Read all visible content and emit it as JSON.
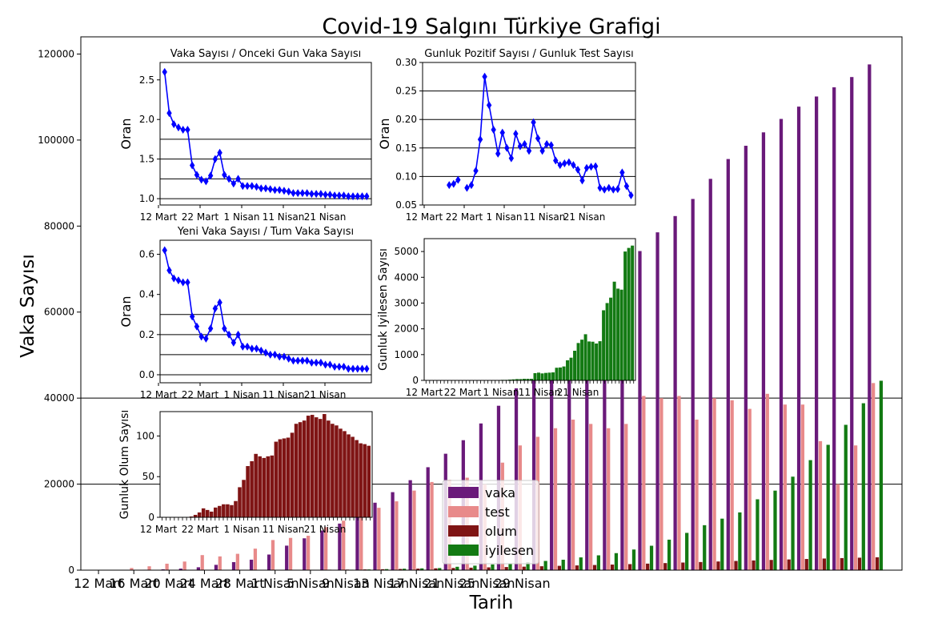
{
  "title": "Covid-19 Salgını Türkiye Grafigi",
  "colors": {
    "vaka": "#6a1a7a",
    "test": "#e88a8a",
    "olum": "#7f1414",
    "iyilesen": "#137a13",
    "ratio_line": "#0000ff",
    "recovered_inset": "#137a13",
    "deaths_inset": "#7f1414"
  },
  "chart_data": [
    {
      "type": "bar",
      "name": "main",
      "xlabel": "Tarih",
      "ylabel": "Vaka Sayısı",
      "ylim": [
        0,
        124000
      ],
      "y_ticks": [
        0,
        20000,
        40000,
        60000,
        80000,
        100000,
        120000
      ],
      "x_tick_labels": [
        "12 Mart",
        "16 Mart",
        "20 Mart",
        "24 Mart",
        "28 Mart",
        "1 Nisan",
        "5 Nisan",
        "9 Nisan",
        "13 Nisan",
        "17 Nisan",
        "21 Nisan",
        "25 Nisan",
        "29 Nisan"
      ],
      "horizontal_lines": [
        20000,
        40000
      ],
      "legend": {
        "placement": "lower-center",
        "entries": [
          "vaka",
          "test",
          "olum",
          "iyilesen"
        ]
      },
      "bar_group_every": 2,
      "series": [
        {
          "name": "vaka",
          "values": [
            1,
            5,
            47,
            98,
            192,
            359,
            670,
            1236,
            1872,
            2433,
            3629,
            5698,
            7402,
            9217,
            10827,
            13531,
            15679,
            18135,
            20921,
            23934,
            27069,
            30217,
            34109,
            38226,
            42282,
            47029,
            52167,
            56956,
            61049,
            65111,
            69392,
            74193,
            78546,
            82329,
            86306,
            90980,
            95591,
            98674,
            101790,
            104912,
            107773,
            110130,
            112261,
            114653,
            117589
          ]
        },
        {
          "name": "test",
          "values": [
            0,
            0,
            500,
            900,
            1500,
            2000,
            3500,
            3200,
            3800,
            5000,
            7000,
            7500,
            8000,
            10000,
            11500,
            15000,
            14500,
            16000,
            18500,
            20500,
            21000,
            21500,
            20000,
            25000,
            29000,
            31000,
            33000,
            35000,
            34000,
            33000,
            34000,
            40500,
            40000,
            40500,
            35000,
            40000,
            39500,
            37500,
            41000,
            38500,
            38500,
            30000,
            20000,
            29000,
            43500
          ]
        },
        {
          "name": "olum",
          "values": [
            0,
            0,
            1,
            2,
            3,
            4,
            9,
            30,
            37,
            44,
            59,
            75,
            92,
            108,
            131,
            168,
            214,
            277,
            356,
            425,
            501,
            574,
            649,
            725,
            812,
            908,
            1006,
            1101,
            1198,
            1296,
            1403,
            1518,
            1643,
            1769,
            1890,
            2017,
            2140,
            2259,
            2376,
            2491,
            2600,
            2706,
            2805,
            2900,
            2992
          ]
        },
        {
          "name": "iyilesen",
          "values": [
            0,
            0,
            0,
            0,
            0,
            0,
            0,
            0,
            0,
            0,
            0,
            26,
            42,
            70,
            105,
            162,
            243,
            333,
            415,
            484,
            786,
            1042,
            1326,
            1582,
            1846,
            2142,
            2423,
            2965,
            3446,
            3957,
            4799,
            5674,
            7089,
            8668,
            10453,
            11976,
            13430,
            16477,
            18491,
            21737,
            25582,
            29140,
            33791,
            38809,
            44040
          ]
        }
      ]
    },
    {
      "type": "line",
      "name": "vaka_ratio_inset",
      "title": "Vaka Sayısı / Onceki Gun Vaka Sayısı",
      "ylabel": "Oran",
      "ylim": [
        0.92,
        2.72
      ],
      "y_ticks": [
        1.0,
        1.5,
        2.0,
        2.5
      ],
      "y_tick_labels": [
        "1.0",
        "1.5",
        "2.0",
        "2.5"
      ],
      "x_tick_labels": [
        "12 Mart",
        "22 Mart",
        "1 Nisan",
        "11 Nisan",
        "21 Nisan"
      ],
      "horizontal_lines": [
        1.0,
        1.25,
        1.5,
        1.75
      ],
      "values": [
        2.6,
        2.08,
        1.94,
        1.9,
        1.87,
        1.87,
        1.42,
        1.3,
        1.24,
        1.22,
        1.29,
        1.5,
        1.58,
        1.3,
        1.25,
        1.19,
        1.25,
        1.16,
        1.16,
        1.16,
        1.15,
        1.13,
        1.13,
        1.12,
        1.11,
        1.11,
        1.1,
        1.09,
        1.07,
        1.07,
        1.07,
        1.07,
        1.06,
        1.06,
        1.06,
        1.05,
        1.05,
        1.04,
        1.04,
        1.04,
        1.03,
        1.03,
        1.03,
        1.03,
        1.03
      ]
    },
    {
      "type": "line",
      "name": "pozitif_test_inset",
      "title": "Gunluk Pozitif Sayısı / Gunluk Test Sayısı",
      "ylabel": "Oran",
      "ylim": [
        0.05,
        0.3
      ],
      "y_ticks": [
        0.05,
        0.1,
        0.15,
        0.2,
        0.25,
        0.3
      ],
      "y_tick_labels": [
        "0.05",
        "0.10",
        "0.15",
        "0.20",
        "0.25",
        "0.30"
      ],
      "x_tick_labels": [
        "12 Mart",
        "22 Mart",
        "1 Nisan",
        "11 Nisan",
        "21 Nisan"
      ],
      "horizontal_lines": [
        0.1,
        0.15,
        0.2,
        0.25
      ],
      "values": [
        null,
        null,
        null,
        null,
        null,
        0.085,
        0.087,
        0.094,
        null,
        0.08,
        0.085,
        0.11,
        0.165,
        0.275,
        0.225,
        0.182,
        0.14,
        0.177,
        0.15,
        0.132,
        0.175,
        0.153,
        0.157,
        0.145,
        0.195,
        0.167,
        0.145,
        0.157,
        0.155,
        0.128,
        0.12,
        0.123,
        0.125,
        0.12,
        0.112,
        0.093,
        0.115,
        0.117,
        0.118,
        0.08,
        0.077,
        0.08,
        0.077,
        0.078,
        0.107,
        0.083,
        0.067
      ]
    },
    {
      "type": "line",
      "name": "yeni_vaka_ratio_inset",
      "title": "Yeni Vaka Sayısı / Tum Vaka Sayısı",
      "ylabel": "Oran",
      "ylim": [
        -0.04,
        0.67
      ],
      "y_ticks": [
        0.0,
        0.2,
        0.4,
        0.6
      ],
      "y_tick_labels": [
        "0.0",
        "0.2",
        "0.4",
        "0.6"
      ],
      "x_tick_labels": [
        "12 Mart",
        "22 Mart",
        "1 Nisan",
        "11 Nisan",
        "21 Nisan"
      ],
      "horizontal_lines": [
        0.0,
        0.1,
        0.2,
        0.3
      ],
      "values": [
        0.62,
        0.52,
        0.48,
        0.47,
        0.46,
        0.46,
        0.29,
        0.24,
        0.19,
        0.18,
        0.23,
        0.33,
        0.36,
        0.23,
        0.2,
        0.16,
        0.2,
        0.14,
        0.14,
        0.13,
        0.13,
        0.12,
        0.11,
        0.1,
        0.1,
        0.09,
        0.09,
        0.08,
        0.07,
        0.07,
        0.07,
        0.07,
        0.06,
        0.06,
        0.06,
        0.05,
        0.05,
        0.04,
        0.04,
        0.04,
        0.03,
        0.03,
        0.03,
        0.03,
        0.03
      ]
    },
    {
      "type": "bar",
      "name": "iyilesen_inset",
      "ylabel": "Gunluk Iyilesen Sayısı",
      "ylim": [
        0,
        5500
      ],
      "y_ticks": [
        0,
        1000,
        2000,
        3000,
        4000,
        5000
      ],
      "x_tick_labels": [
        "12 Mart",
        "22 Mart",
        "1 Nisan",
        "11 Nisan",
        "21 Nisan"
      ],
      "values": [
        0,
        0,
        0,
        0,
        0,
        0,
        0,
        0,
        0,
        0,
        0,
        0,
        0,
        0,
        0,
        0,
        0,
        0,
        0,
        0,
        10,
        20,
        20,
        30,
        40,
        50,
        50,
        60,
        60,
        60,
        280,
        300,
        270,
        290,
        300,
        310,
        490,
        500,
        540,
        780,
        880,
        1150,
        1450,
        1580,
        1790,
        1510,
        1500,
        1430,
        1520,
        2720,
        3000,
        3210,
        3830,
        3560,
        3520,
        5000,
        5140,
        5230
      ]
    },
    {
      "type": "bar",
      "name": "olum_inset",
      "ylabel": "Gunluk Olum Sayısı",
      "ylim": [
        0,
        130
      ],
      "y_ticks": [
        0,
        50,
        100
      ],
      "x_tick_labels": [
        "12 Mart",
        "22 Mart",
        "1 Nisan",
        "11 Nisan",
        "21 Nisan"
      ],
      "values": [
        0,
        0,
        0,
        0,
        0,
        0,
        0,
        1,
        3,
        6,
        11,
        9,
        7,
        12,
        14,
        16,
        16,
        15,
        20,
        37,
        46,
        63,
        69,
        78,
        75,
        73,
        75,
        76,
        93,
        96,
        97,
        98,
        104,
        115,
        117,
        119,
        125,
        126,
        123,
        121,
        127,
        119,
        115,
        113,
        109,
        106,
        102,
        99,
        95,
        91,
        90,
        88
      ]
    }
  ]
}
